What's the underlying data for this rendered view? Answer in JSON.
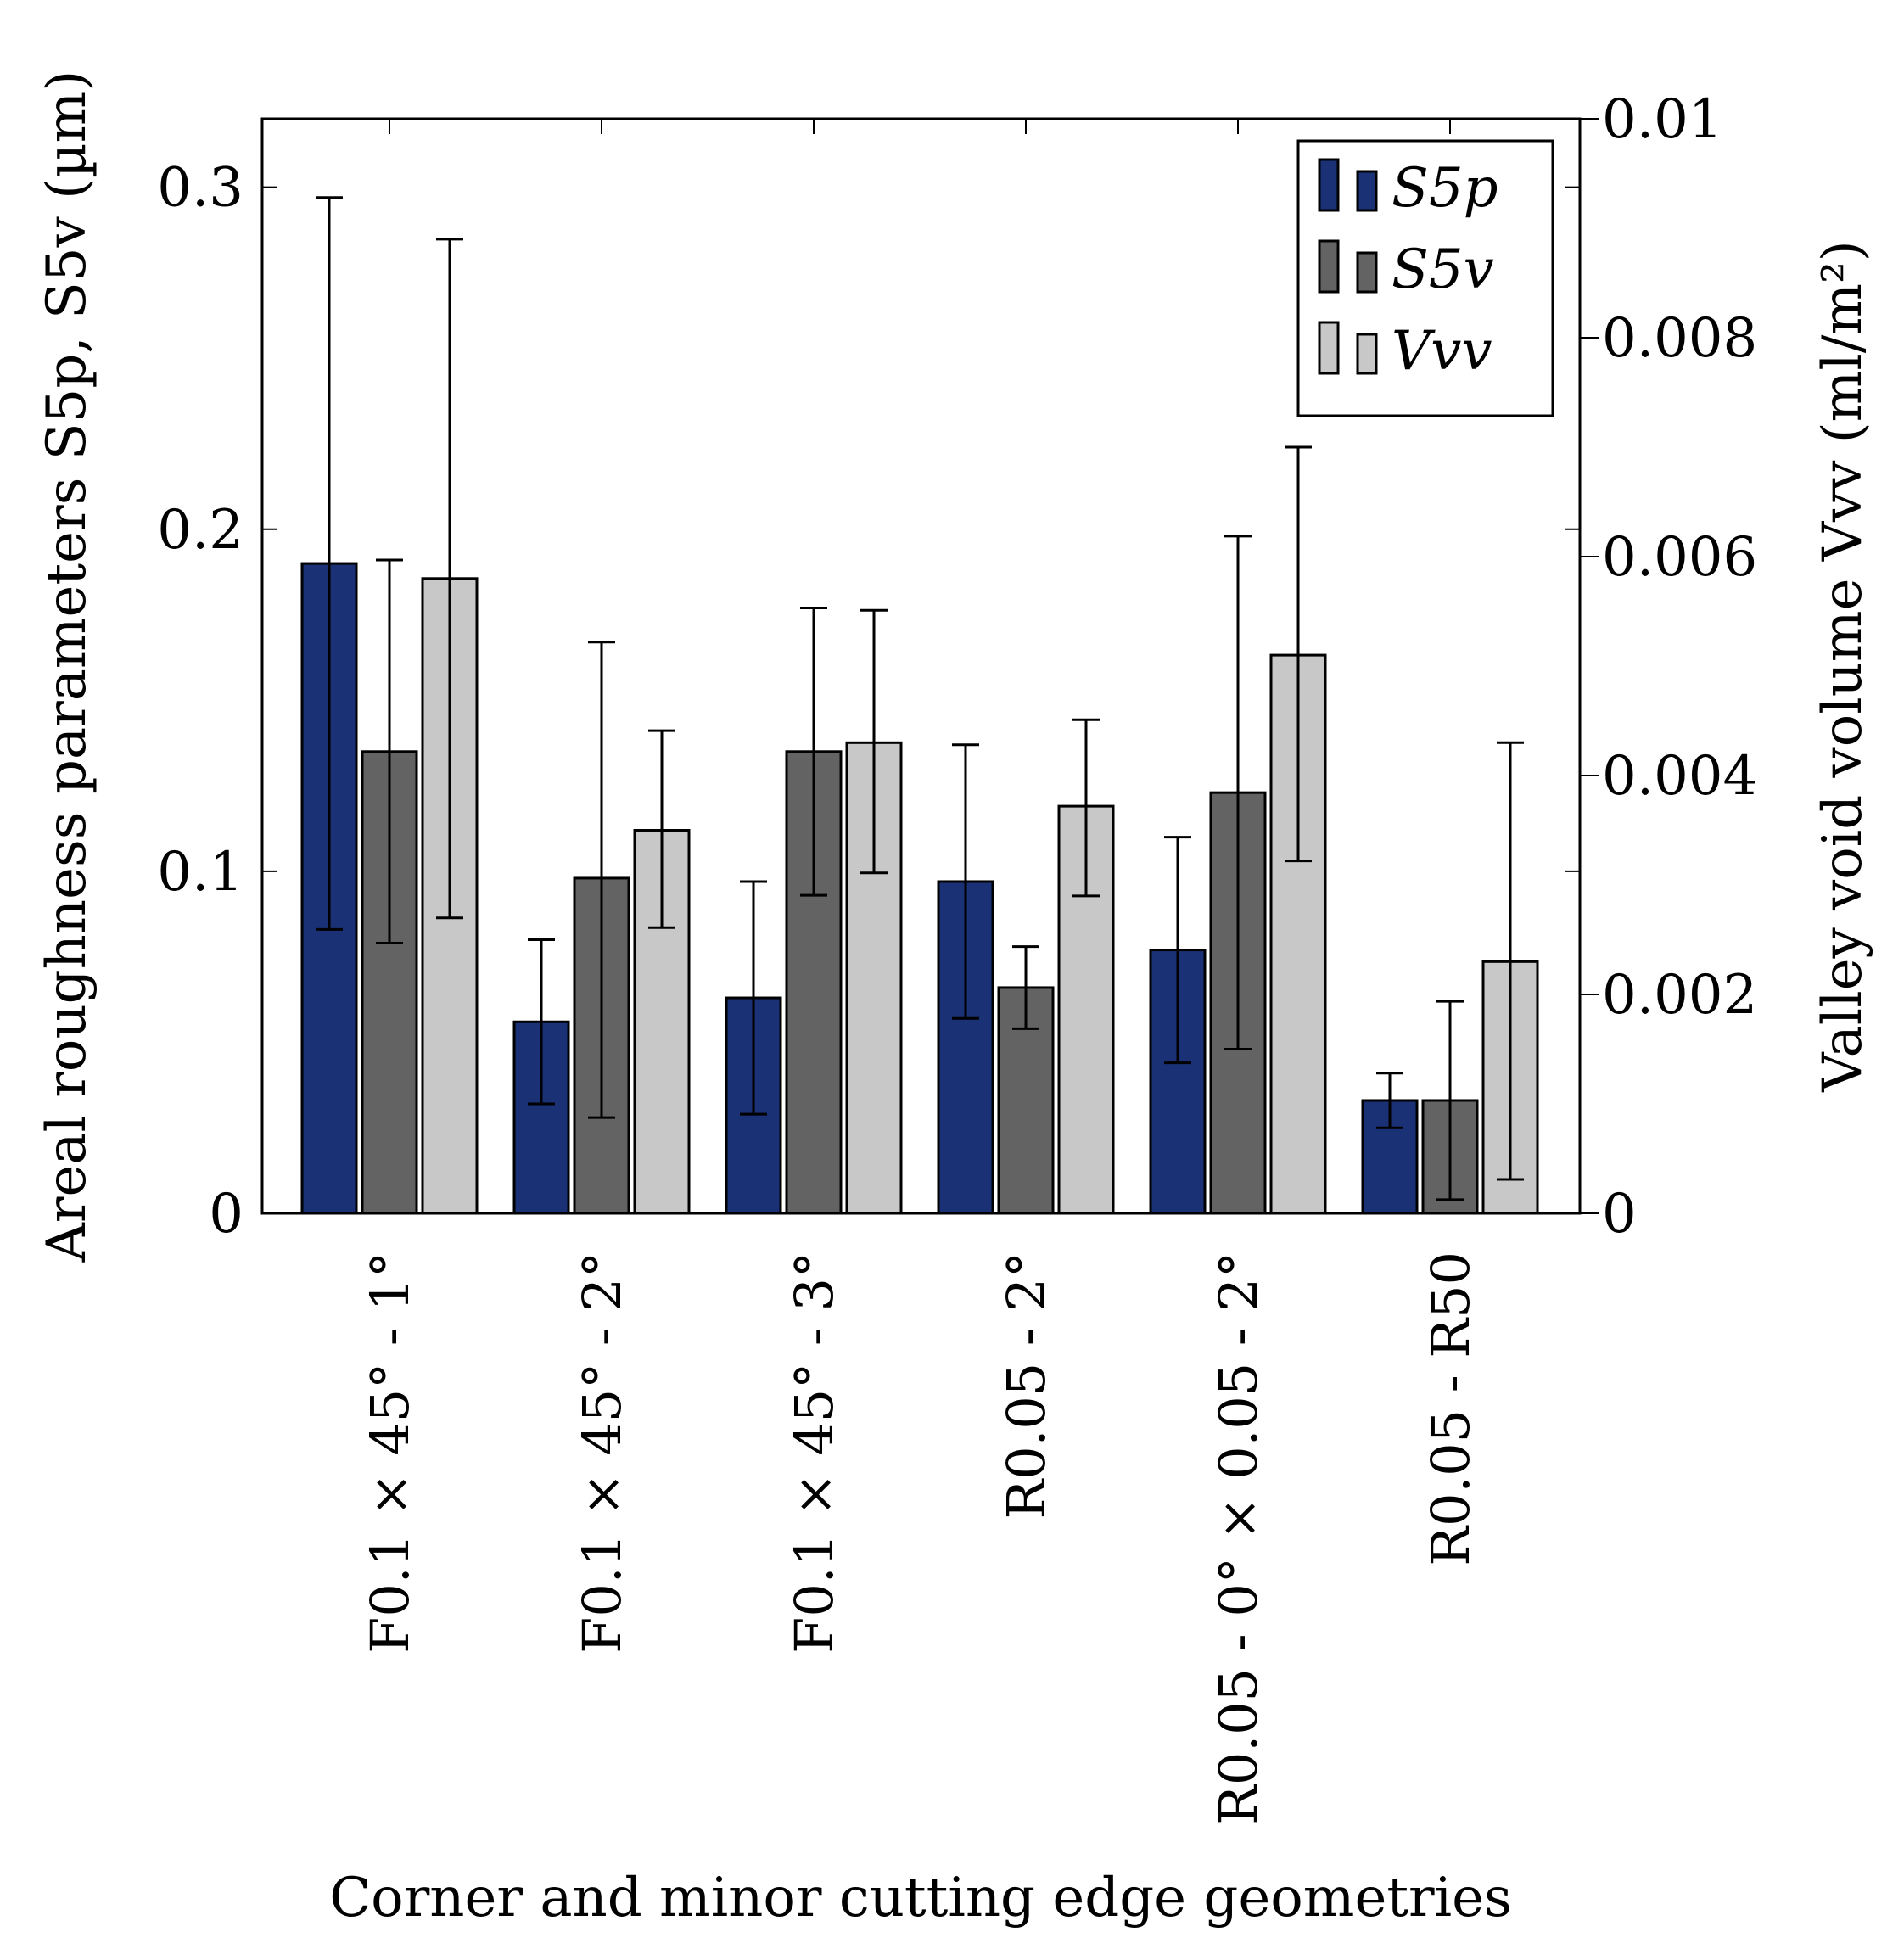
{
  "chart_data": {
    "type": "bar",
    "xlabel": "Corner and minor cutting edge geometries",
    "ylabel": "Areal roughness parameters S5p, S5v (µm)",
    "ylabel_right": "Valley void volume Vvv (ml/m²)",
    "categories": [
      "F0.1 × 45° - 1°",
      "F0.1 × 45° - 2°",
      "F0.1 × 45° - 3°",
      "R0.05 - 2°",
      "R0.05 - 0° × 0.05 - 2°",
      "R0.05 - R50"
    ],
    "ylim": [
      0,
      0.32
    ],
    "ylim_right": [
      0,
      0.01
    ],
    "yticks": [
      "0",
      "0.1",
      "0.2",
      "0.3"
    ],
    "yticks_right": [
      "0",
      "0.002",
      "0.004",
      "0.006",
      "0.008",
      "0.01"
    ],
    "series": [
      {
        "name": "S5p",
        "axis": "left",
        "color": "#1a3275",
        "values": [
          0.19,
          0.056,
          0.063,
          0.097,
          0.077,
          0.033
        ],
        "err_low": [
          0.083,
          0.032,
          0.029,
          0.057,
          0.044,
          0.025
        ],
        "err_high": [
          0.297,
          0.08,
          0.097,
          0.137,
          0.11,
          0.041
        ]
      },
      {
        "name": "S5v",
        "axis": "left",
        "color": "#636363",
        "values": [
          0.135,
          0.098,
          0.135,
          0.066,
          0.123,
          0.033
        ],
        "err_low": [
          0.079,
          0.028,
          0.093,
          0.054,
          0.048,
          0.004
        ],
        "err_high": [
          0.191,
          0.167,
          0.177,
          0.078,
          0.198,
          0.062
        ]
      },
      {
        "name": "Vvv",
        "axis": "right",
        "color": "#c8c8c8",
        "values": [
          0.0058,
          0.0035,
          0.0043,
          0.00372,
          0.0051,
          0.0023
        ],
        "err_low": [
          0.0027,
          0.00261,
          0.00311,
          0.0029,
          0.00322,
          0.00031
        ],
        "err_high": [
          0.0089,
          0.00441,
          0.00551,
          0.00451,
          0.007,
          0.0043
        ]
      }
    ],
    "legend": {
      "position": "top-right",
      "entries": [
        "S5p",
        "S5v",
        "Vvv"
      ]
    }
  }
}
